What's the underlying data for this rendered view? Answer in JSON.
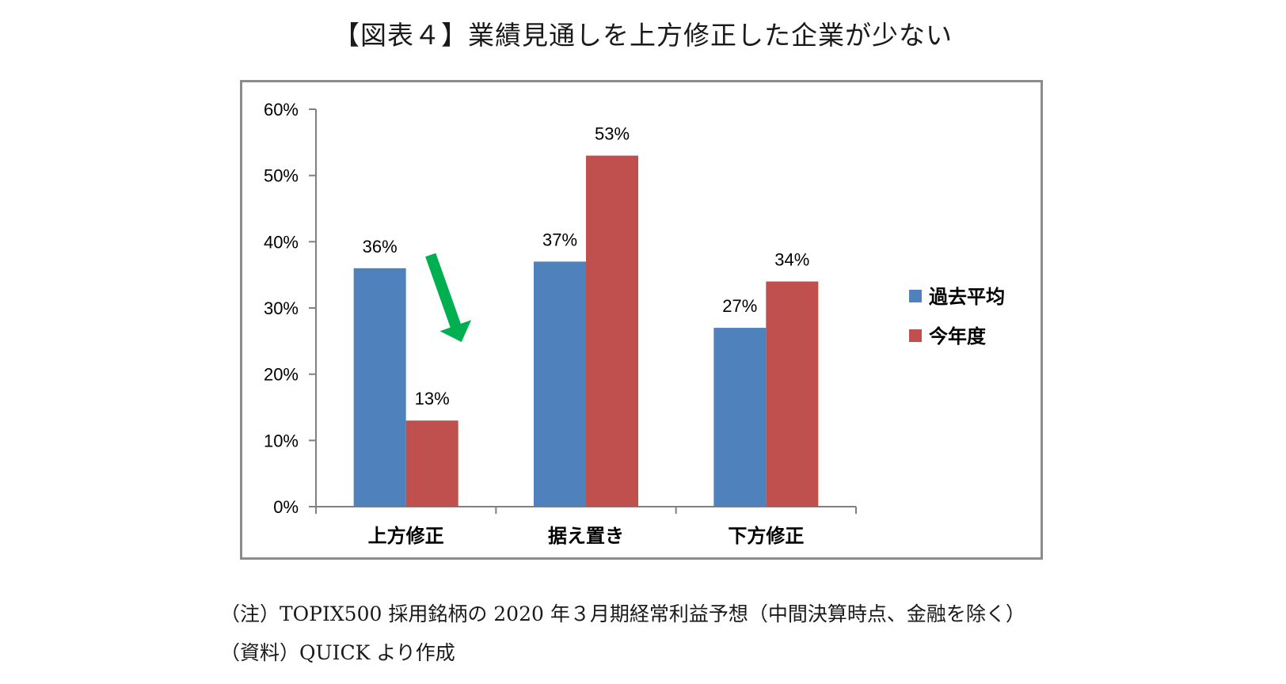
{
  "title": "【図表４】業績見通しを上方修正した企業が少ない",
  "notes": {
    "note": "（注）TOPIX500 採用銘柄の 2020 年３月期経常利益予想（中間決算時点、金融を除く）",
    "source": "（資料）QUICK より作成"
  },
  "colors": {
    "series_past": "#4f81bd",
    "series_current": "#c0504d",
    "arrow": "#00b050",
    "axis": "#808080"
  },
  "chart_data": {
    "type": "bar",
    "categories": [
      "上方修正",
      "据え置き",
      "下方修正"
    ],
    "series": [
      {
        "name": "過去平均",
        "values": [
          36,
          37,
          27
        ],
        "labels": [
          "36%",
          "37%",
          "27%"
        ]
      },
      {
        "name": "今年度",
        "values": [
          13,
          53,
          34
        ],
        "labels": [
          "13%",
          "53%",
          "34%"
        ]
      }
    ],
    "ylim": [
      0,
      60
    ],
    "yticks": [
      0,
      10,
      20,
      30,
      40,
      50,
      60
    ],
    "ytick_labels": [
      "0%",
      "10%",
      "20%",
      "30%",
      "40%",
      "50%",
      "60%"
    ],
    "legend_position": "right",
    "grid": false,
    "annotation": "green-down-arrow"
  }
}
